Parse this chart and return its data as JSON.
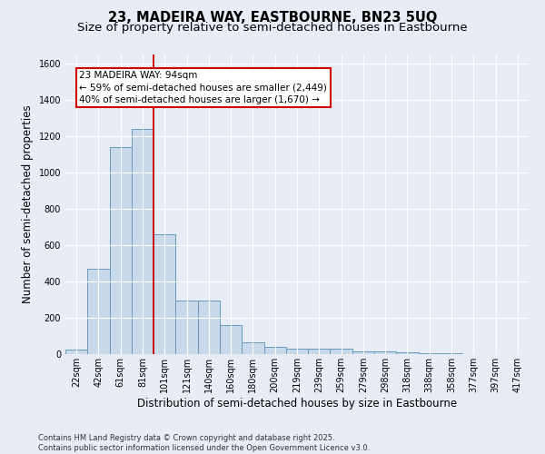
{
  "title": "23, MADEIRA WAY, EASTBOURNE, BN23 5UQ",
  "subtitle": "Size of property relative to semi-detached houses in Eastbourne",
  "xlabel": "Distribution of semi-detached houses by size in Eastbourne",
  "ylabel": "Number of semi-detached properties",
  "bar_color": "#c8d9ea",
  "bar_edge_color": "#6699bb",
  "background_color": "#e8ecf5",
  "categories": [
    "22sqm",
    "42sqm",
    "61sqm",
    "81sqm",
    "101sqm",
    "121sqm",
    "140sqm",
    "160sqm",
    "180sqm",
    "200sqm",
    "219sqm",
    "239sqm",
    "259sqm",
    "279sqm",
    "298sqm",
    "318sqm",
    "338sqm",
    "358sqm",
    "377sqm",
    "397sqm",
    "417sqm"
  ],
  "values": [
    25,
    470,
    1140,
    1240,
    660,
    295,
    295,
    160,
    65,
    40,
    30,
    30,
    30,
    15,
    15,
    8,
    5,
    3,
    2,
    2,
    2
  ],
  "vline_color": "#cc0000",
  "annotation_text": "23 MADEIRA WAY: 94sqm\n← 59% of semi-detached houses are smaller (2,449)\n40% of semi-detached houses are larger (1,670) →",
  "annotation_box_color": "#ffffff",
  "annotation_box_edge_color": "#cc0000",
  "ylim": [
    0,
    1650
  ],
  "yticks": [
    0,
    200,
    400,
    600,
    800,
    1000,
    1200,
    1400,
    1600
  ],
  "footer": "Contains HM Land Registry data © Crown copyright and database right 2025.\nContains public sector information licensed under the Open Government Licence v3.0.",
  "title_fontsize": 10.5,
  "subtitle_fontsize": 9.5,
  "axis_label_fontsize": 8.5,
  "tick_fontsize": 7,
  "annotation_fontsize": 7.5,
  "footer_fontsize": 6
}
